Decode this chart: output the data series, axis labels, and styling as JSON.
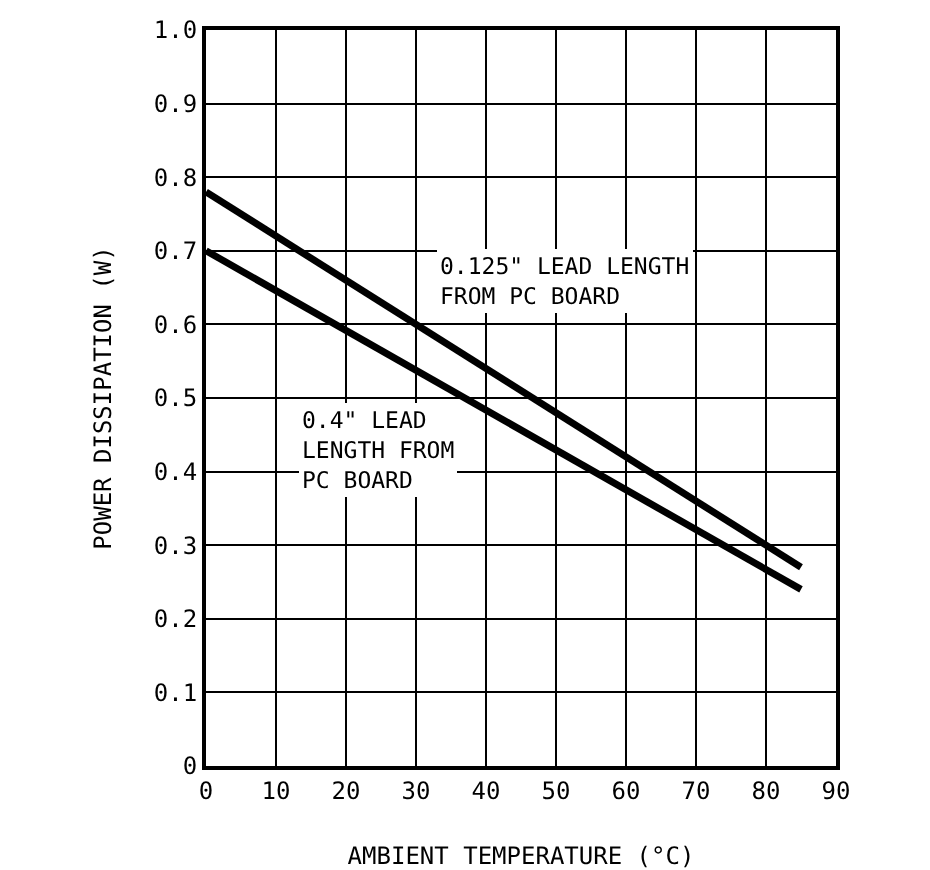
{
  "chart_data": {
    "type": "line",
    "xlabel": "AMBIENT TEMPERATURE (°C)",
    "ylabel": "POWER DISSIPATION (W)",
    "xlim": [
      0,
      90
    ],
    "xticks": [
      0,
      10,
      20,
      30,
      40,
      50,
      60,
      70,
      80,
      90
    ],
    "ylim": [
      0,
      1.0
    ],
    "yticks": [
      {
        "value": 0,
        "label": "0"
      },
      0.1,
      0.2,
      0.3,
      0.4,
      0.5,
      0.6,
      0.7,
      0.8,
      0.9,
      {
        "value": 1,
        "label": "1.0"
      }
    ],
    "x": [
      0,
      85
    ],
    "grid": true,
    "legend": false,
    "marker": "none",
    "line_style": "solid",
    "series": [
      {
        "name": "0.125\" LEAD LENGTH\nFROM PC BOARD",
        "color": "#000000",
        "values": [
          0.78,
          0.27
        ]
      },
      {
        "name": "0.4\" LEAD\nLENGTH FROM\nPC BOARD",
        "color": "#000000",
        "values": [
          0.7,
          0.24
        ]
      }
    ]
  }
}
